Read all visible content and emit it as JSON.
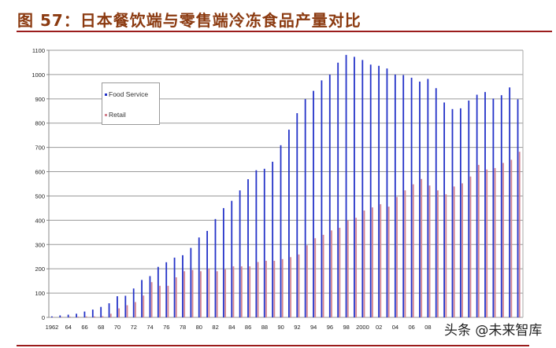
{
  "title": "图 57：日本餐饮端与零售端冷冻食品产量对比",
  "watermark": "头条 @未来智库",
  "colors": {
    "food_service": "#2433c8",
    "retail": "#d4838f",
    "title": "#8b3a10",
    "rule": "#9b1c1c"
  },
  "chart_data": {
    "type": "bar",
    "title": "",
    "xlabel": "",
    "ylabel": "",
    "ylim": [
      0,
      1100
    ],
    "y_ticks": [
      "0",
      "100",
      "200",
      "300",
      "400",
      "500",
      "600",
      "700",
      "800",
      "900",
      "1000",
      "1100"
    ],
    "grid": true,
    "legend_position": "top-left",
    "x": [
      1962,
      1963,
      1964,
      1965,
      1966,
      1967,
      1968,
      1969,
      1970,
      1971,
      1972,
      1973,
      1974,
      1975,
      1976,
      1977,
      1978,
      1979,
      1980,
      1981,
      1982,
      1983,
      1984,
      1985,
      1986,
      1987,
      1988,
      1989,
      1990,
      1991,
      1992,
      1993,
      1994,
      1995,
      1996,
      1997,
      1998,
      1999,
      2000,
      2001,
      2002,
      2003,
      2004,
      2005,
      2006,
      2007,
      2008,
      2009,
      2010,
      2011,
      2012,
      2013,
      2014,
      2015,
      2016,
      2017,
      2018,
      2019
    ],
    "x_tick_labels": [
      "1962",
      "64",
      "66",
      "68",
      "70",
      "72",
      "74",
      "76",
      "78",
      "80",
      "82",
      "84",
      "86",
      "88",
      "90",
      "92",
      "94",
      "96",
      "98",
      "2000",
      "02",
      "04",
      "06",
      "08"
    ],
    "series": [
      {
        "name": "Food Service",
        "values": [
          4,
          8,
          11,
          15,
          24,
          32,
          43,
          58,
          87,
          89,
          119,
          154,
          170,
          208,
          227,
          246,
          256,
          286,
          329,
          356,
          405,
          450,
          480,
          523,
          569,
          606,
          612,
          641,
          709,
          773,
          841,
          899,
          933,
          976,
          1000,
          1049,
          1081,
          1073,
          1060,
          1041,
          1036,
          1025,
          1000,
          998,
          987,
          971,
          982,
          944,
          885,
          858,
          861,
          893,
          917,
          928,
          901,
          915,
          947,
          898
        ]
      },
      {
        "name": "Retail",
        "values": [
          1,
          2,
          3,
          3,
          4,
          4,
          5,
          15,
          37,
          50,
          63,
          90,
          145,
          130,
          130,
          165,
          190,
          195,
          190,
          200,
          190,
          198,
          210,
          210,
          210,
          228,
          233,
          233,
          240,
          248,
          259,
          297,
          326,
          340,
          358,
          369,
          399,
          410,
          440,
          453,
          466,
          456,
          496,
          523,
          548,
          570,
          543,
          523,
          507,
          539,
          552,
          580,
          628,
          609,
          615,
          636,
          649,
          682
        ]
      }
    ]
  }
}
